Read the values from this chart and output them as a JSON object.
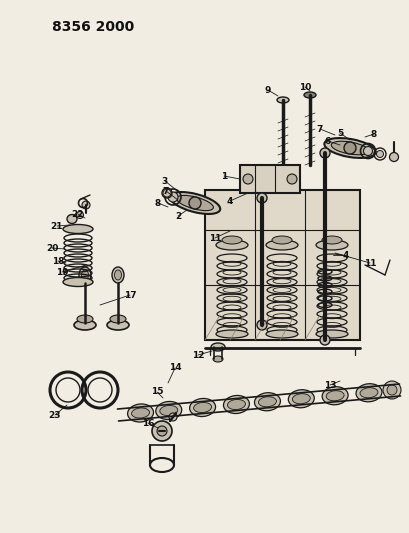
{
  "title": "8356 2000",
  "bg_color": "#f2ede3",
  "line_color": "#1a1a1a",
  "text_color": "#111111",
  "gray_fill": "#c8c0b0",
  "dark_fill": "#888070",
  "mid_fill": "#b0a898"
}
